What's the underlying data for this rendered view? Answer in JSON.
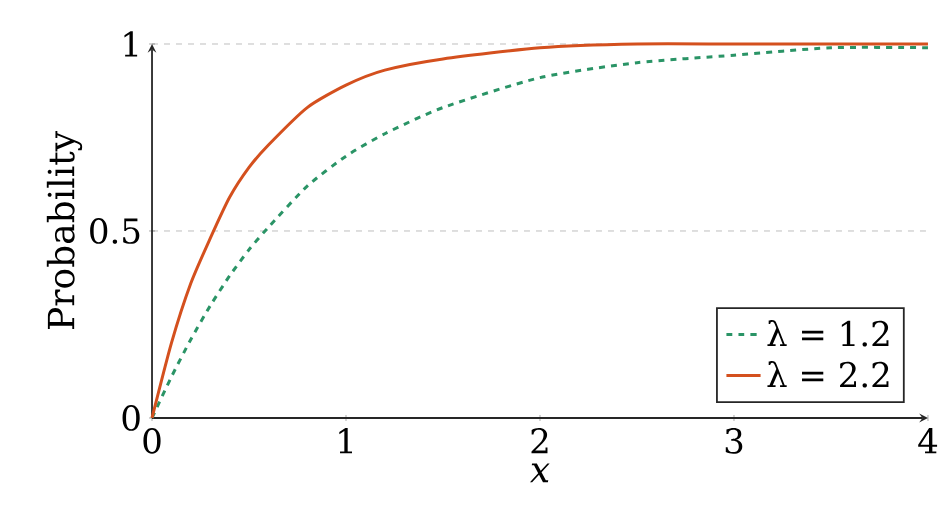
{
  "chart_data": {
    "type": "line",
    "xlabel": "x",
    "ylabel": "Probability",
    "xlim": [
      0,
      4
    ],
    "ylim": [
      0,
      1
    ],
    "xticks": [
      0,
      1,
      2,
      3,
      4
    ],
    "yticks": [
      0,
      0.5,
      1
    ],
    "grid": "y",
    "legend": "bottom right",
    "marker": "none",
    "series": [
      {
        "name": "λ = 1.2",
        "color": "#2a9466",
        "line_style": "dashed",
        "x": [
          0,
          0.1,
          0.2,
          0.3,
          0.4,
          0.5,
          0.6,
          0.8,
          1,
          1.2,
          1.5,
          2,
          2.5,
          3,
          3.5,
          4
        ],
        "values": [
          0,
          0.11,
          0.21,
          0.3,
          0.38,
          0.45,
          0.51,
          0.62,
          0.7,
          0.76,
          0.83,
          0.91,
          0.95,
          0.97,
          0.99,
          0.99
        ]
      },
      {
        "name": "λ = 2.2",
        "color": "#d4501e",
        "line_style": "solid",
        "x": [
          0,
          0.1,
          0.2,
          0.3,
          0.4,
          0.5,
          0.6,
          0.8,
          1,
          1.2,
          1.5,
          2,
          2.5,
          3,
          3.5,
          4
        ],
        "values": [
          0,
          0.2,
          0.36,
          0.48,
          0.59,
          0.67,
          0.73,
          0.83,
          0.89,
          0.93,
          0.96,
          0.99,
          1.0,
          1.0,
          1.0,
          1.0
        ]
      }
    ]
  }
}
